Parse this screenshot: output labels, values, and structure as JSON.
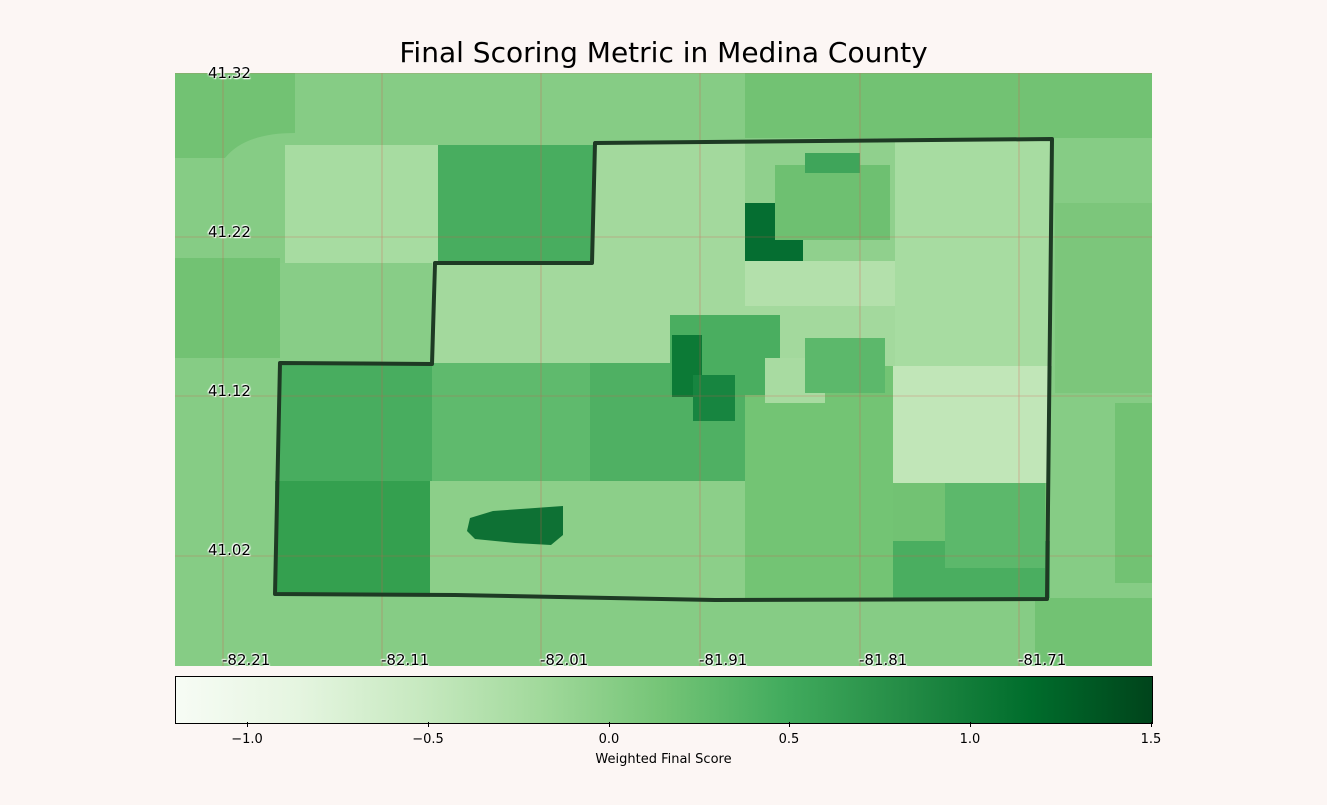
{
  "title": "Final Scoring Metric in Medina County",
  "map": {
    "lat_labels": [
      "41.32",
      "41.22",
      "41.12",
      "41.02"
    ],
    "lon_labels": [
      "-82.21",
      "-82.11",
      "-82.01",
      "-81.91",
      "-81.81",
      "-81.71"
    ],
    "colormap": "Greens",
    "boundary_color": "#1e3a24",
    "gridline_color": "#d9534f"
  },
  "colorbar": {
    "label": "Weighted Final Score",
    "ticks": [
      "−1.0",
      "−0.5",
      "0.0",
      "0.5",
      "1.0",
      "1.5"
    ],
    "range": [
      -1.2,
      1.5
    ]
  }
}
